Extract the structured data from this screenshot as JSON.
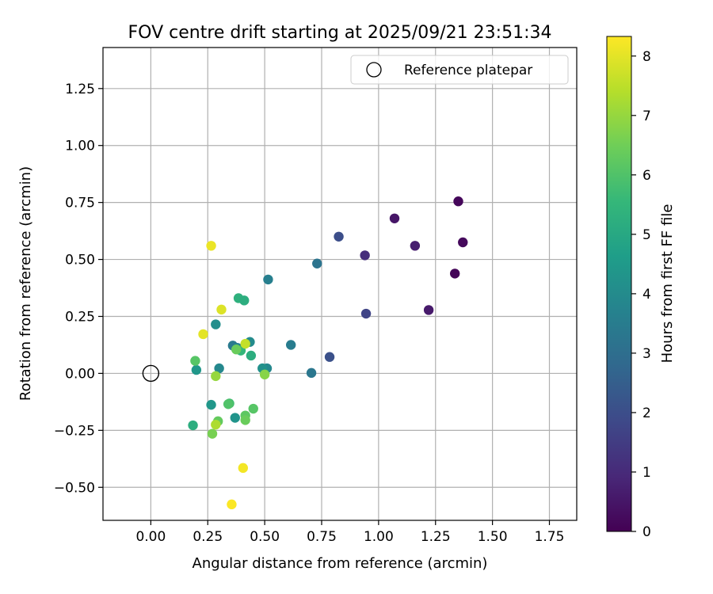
{
  "chart_data": {
    "type": "scatter",
    "title": "FOV centre drift starting at 2025/09/21 23:51:34",
    "xlabel": "Angular distance from reference (arcmin)",
    "ylabel": "Rotation from reference (arcmin)",
    "xlim": [
      -0.21,
      1.87
    ],
    "ylim": [
      -0.645,
      1.43
    ],
    "xticks": [
      0.0,
      0.25,
      0.5,
      0.75,
      1.0,
      1.25,
      1.5,
      1.75
    ],
    "xtick_labels": [
      "0.00",
      "0.25",
      "0.50",
      "0.75",
      "1.00",
      "1.25",
      "1.50",
      "1.75"
    ],
    "yticks": [
      -0.5,
      -0.25,
      0.0,
      0.25,
      0.5,
      0.75,
      1.0,
      1.25
    ],
    "ytick_labels": [
      "−0.50",
      "−0.25",
      "0.00",
      "0.25",
      "0.50",
      "0.75",
      "1.00",
      "1.25"
    ],
    "grid": true,
    "legend": {
      "label": "Reference platepar",
      "placement": "top-right",
      "marker": "open-circle"
    },
    "reference_point": {
      "x": 0.0,
      "y": 0.0
    },
    "colorbar": {
      "label": "Hours from first FF file",
      "range": [
        0,
        8.33
      ],
      "ticks": [
        0,
        1,
        2,
        3,
        4,
        5,
        6,
        7,
        8
      ],
      "colormap": [
        "#440154",
        "#482878",
        "#3e4989",
        "#31688e",
        "#26828e",
        "#1f9e89",
        "#35b779",
        "#6ece58",
        "#b5de2b",
        "#fde725"
      ]
    },
    "points": [
      {
        "x": 1.35,
        "y": 0.755,
        "hours": 0.15
      },
      {
        "x": 1.37,
        "y": 0.575,
        "hours": 0.2
      },
      {
        "x": 1.335,
        "y": 0.438,
        "hours": 0.1
      },
      {
        "x": 1.07,
        "y": 0.68,
        "hours": 0.5
      },
      {
        "x": 1.16,
        "y": 0.56,
        "hours": 0.7
      },
      {
        "x": 1.22,
        "y": 0.278,
        "hours": 0.6
      },
      {
        "x": 0.94,
        "y": 0.518,
        "hours": 1.1
      },
      {
        "x": 0.945,
        "y": 0.262,
        "hours": 1.7
      },
      {
        "x": 0.825,
        "y": 0.6,
        "hours": 2.0
      },
      {
        "x": 0.785,
        "y": 0.072,
        "hours": 2.1
      },
      {
        "x": 0.73,
        "y": 0.482,
        "hours": 3.2
      },
      {
        "x": 0.705,
        "y": 0.002,
        "hours": 3.3
      },
      {
        "x": 0.615,
        "y": 0.125,
        "hours": 3.5
      },
      {
        "x": 0.515,
        "y": 0.412,
        "hours": 3.6
      },
      {
        "x": 0.51,
        "y": 0.022,
        "hours": 3.9
      },
      {
        "x": 0.49,
        "y": 0.022,
        "hours": 4.2
      },
      {
        "x": 0.435,
        "y": 0.138,
        "hours": 4.0
      },
      {
        "x": 0.36,
        "y": 0.122,
        "hours": 3.4
      },
      {
        "x": 0.38,
        "y": 0.112,
        "hours": 3.7
      },
      {
        "x": 0.285,
        "y": 0.215,
        "hours": 4.1
      },
      {
        "x": 0.3,
        "y": 0.022,
        "hours": 3.9
      },
      {
        "x": 0.2,
        "y": 0.015,
        "hours": 4.4
      },
      {
        "x": 0.265,
        "y": -0.138,
        "hours": 4.4
      },
      {
        "x": 0.37,
        "y": -0.195,
        "hours": 4.3
      },
      {
        "x": 0.44,
        "y": 0.078,
        "hours": 5.2
      },
      {
        "x": 0.385,
        "y": 0.33,
        "hours": 5.3
      },
      {
        "x": 0.41,
        "y": 0.32,
        "hours": 5.2
      },
      {
        "x": 0.395,
        "y": 0.1,
        "hours": 5.5
      },
      {
        "x": 0.185,
        "y": -0.228,
        "hours": 5.2
      },
      {
        "x": 0.345,
        "y": -0.132,
        "hours": 5.8
      },
      {
        "x": 0.34,
        "y": -0.135,
        "hours": 6.0
      },
      {
        "x": 0.45,
        "y": -0.155,
        "hours": 6.1
      },
      {
        "x": 0.415,
        "y": -0.185,
        "hours": 6.2
      },
      {
        "x": 0.195,
        "y": 0.055,
        "hours": 6.1
      },
      {
        "x": 0.375,
        "y": 0.105,
        "hours": 6.4
      },
      {
        "x": 0.295,
        "y": -0.21,
        "hours": 6.3
      },
      {
        "x": 0.415,
        "y": -0.205,
        "hours": 6.4
      },
      {
        "x": 0.27,
        "y": -0.265,
        "hours": 6.6
      },
      {
        "x": 0.5,
        "y": -0.005,
        "hours": 6.8
      },
      {
        "x": 0.285,
        "y": -0.012,
        "hours": 7.0
      },
      {
        "x": 0.285,
        "y": -0.225,
        "hours": 7.3
      },
      {
        "x": 0.415,
        "y": 0.13,
        "hours": 7.6
      },
      {
        "x": 0.31,
        "y": 0.28,
        "hours": 7.9
      },
      {
        "x": 0.23,
        "y": 0.172,
        "hours": 8.0
      },
      {
        "x": 0.265,
        "y": 0.56,
        "hours": 8.1
      },
      {
        "x": 0.405,
        "y": -0.415,
        "hours": 8.2
      },
      {
        "x": 0.355,
        "y": -0.575,
        "hours": 8.3
      }
    ]
  }
}
